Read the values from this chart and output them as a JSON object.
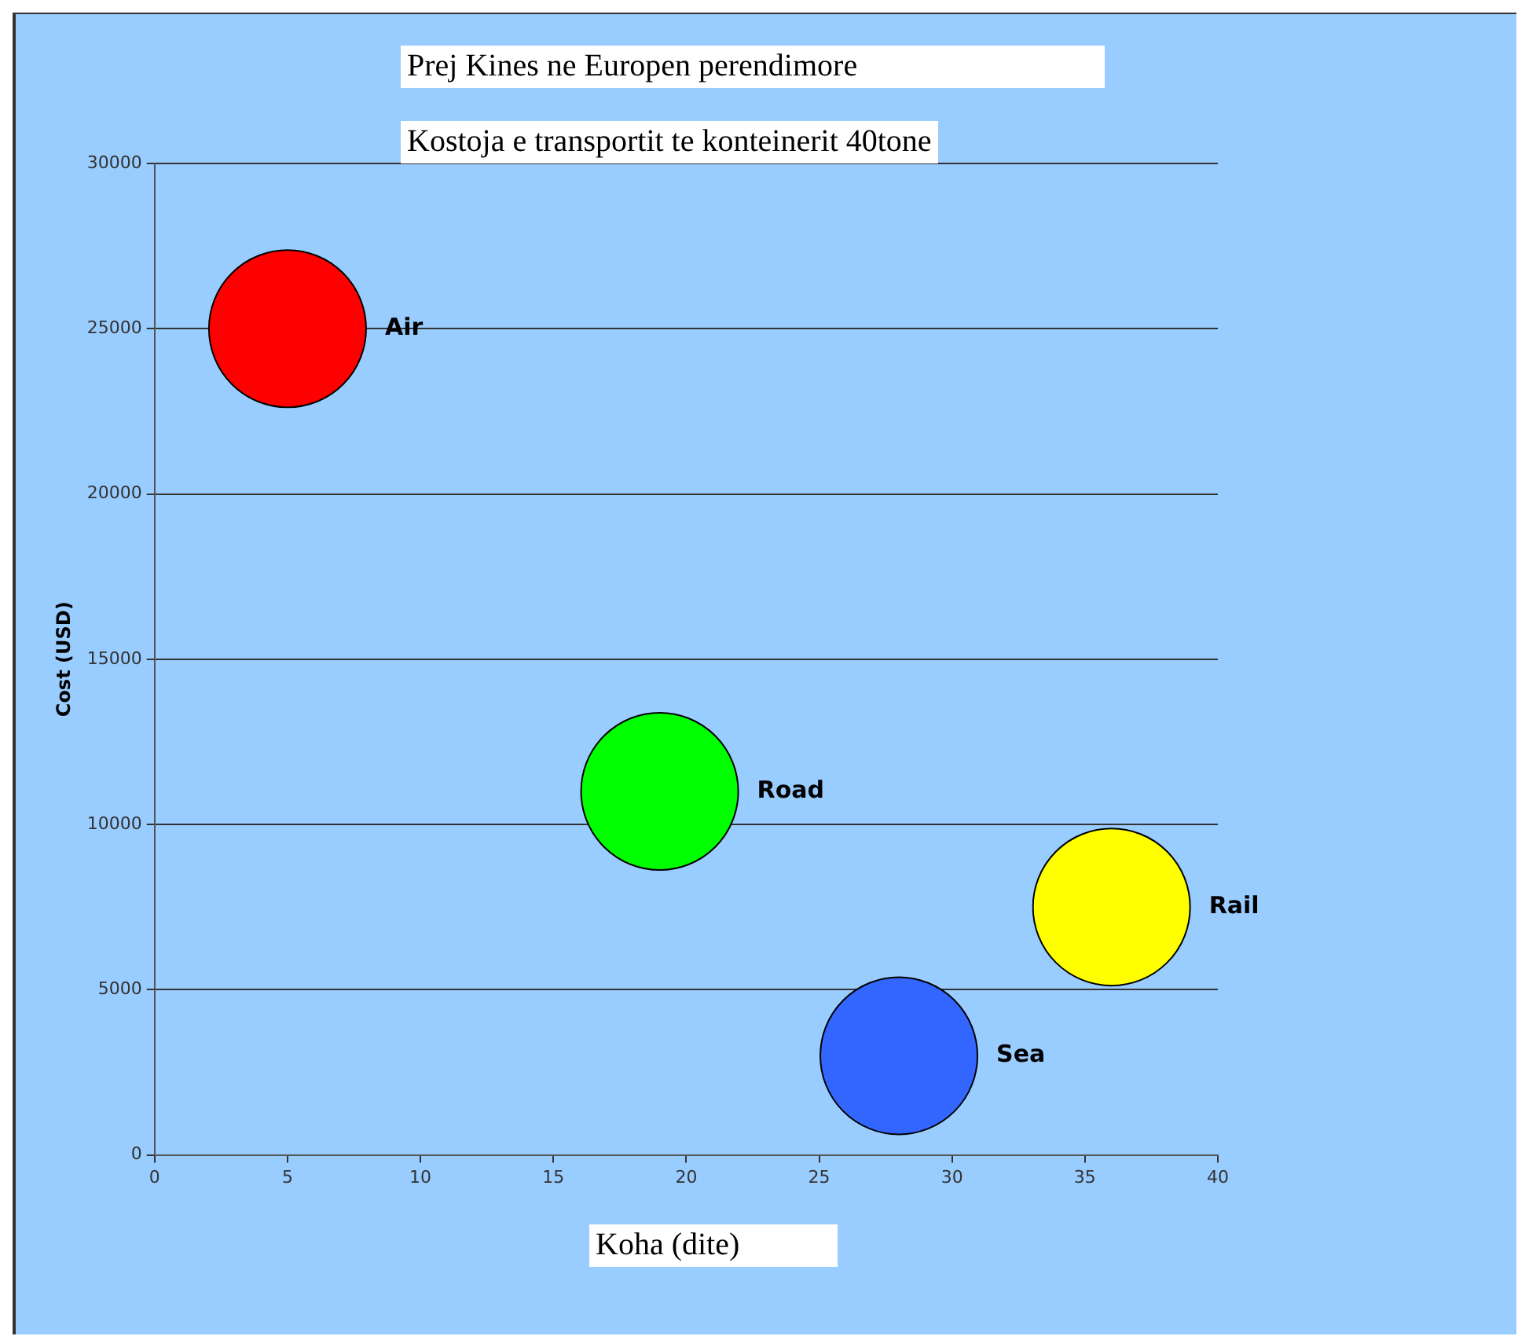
{
  "chart_data": {
    "type": "bubble",
    "title": "Prej Kines ne Europen perendimore",
    "subtitle": "Kostoja e transportit te konteinerit 40tone",
    "xlabel": "Koha (dite)",
    "ylabel": "Cost (USD)",
    "series": [
      {
        "name": "Air",
        "color": "#ff0000",
        "x": [
          5
        ],
        "values": [
          25000
        ],
        "sizes": [
          1
        ]
      },
      {
        "name": "Road",
        "color": "#00ff00",
        "x": [
          19
        ],
        "values": [
          11000
        ],
        "sizes": [
          1
        ]
      },
      {
        "name": "Rail",
        "color": "#ffff00",
        "x": [
          36
        ],
        "values": [
          7500
        ],
        "sizes": [
          1
        ]
      },
      {
        "name": "Sea",
        "color": "#3366ff",
        "x": [
          28
        ],
        "values": [
          3000
        ],
        "sizes": [
          1
        ]
      }
    ],
    "xlim": [
      0,
      40
    ],
    "xticks": [
      0,
      5,
      10,
      15,
      20,
      25,
      30,
      35,
      40
    ],
    "ylim": [
      0,
      30000
    ],
    "yticks": [
      0,
      5000,
      10000,
      15000,
      20000,
      25000,
      30000
    ],
    "grid": "y",
    "legend": false
  }
}
